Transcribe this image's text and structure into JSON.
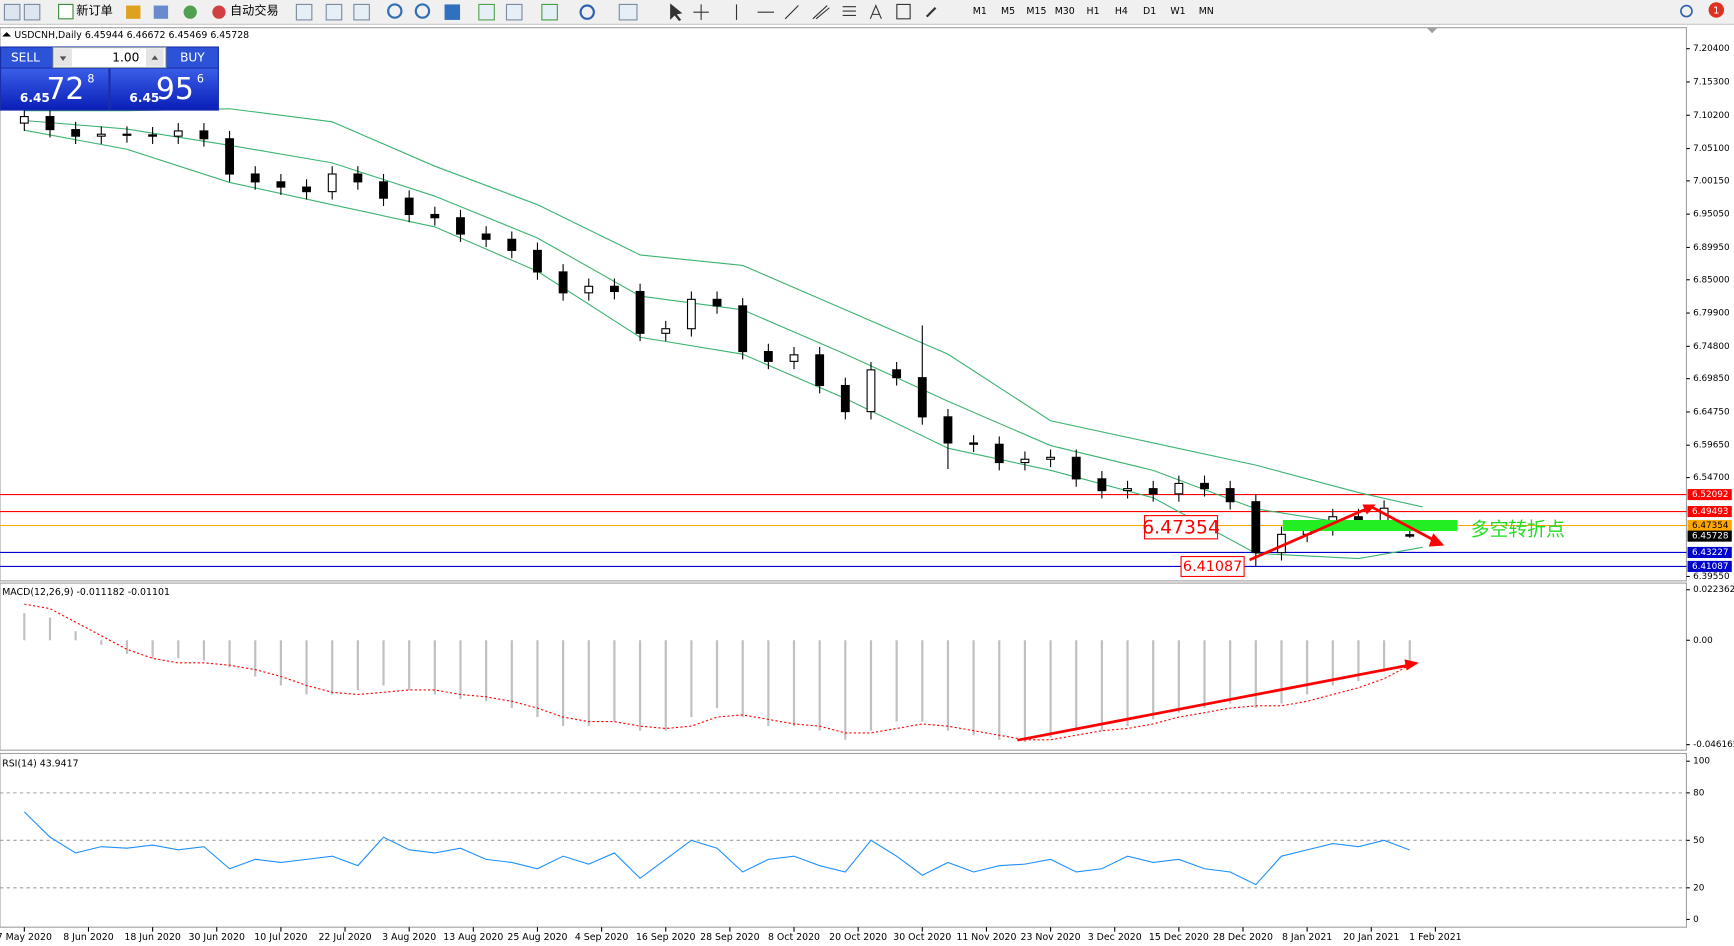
{
  "toolbar": {
    "new_order": "新订单",
    "auto_trading": "自动交易",
    "timeframes": [
      "M1",
      "M5",
      "M15",
      "M30",
      "H1",
      "H4",
      "D1",
      "W1",
      "MN"
    ],
    "alerts": "1"
  },
  "trade_panel": {
    "sell": "SELL",
    "lot": "1.00",
    "buy": "BUY",
    "bid": {
      "big": "6.45",
      "pips": "72",
      "frac": "8"
    },
    "ask": {
      "big": "6.45",
      "pips": "95",
      "frac": "6"
    }
  },
  "chart_data": [
    {
      "type": "candlestick",
      "symbol": "USDCNH,Daily",
      "xlim": [
        0,
        220
      ],
      "ylim": [
        6.3955,
        7.204
      ],
      "yticks": [
        {
          "value": 7.204,
          "label": "7.20400"
        },
        {
          "value": 7.153,
          "label": "7.15300"
        },
        {
          "value": 7.102,
          "label": "7.10200"
        },
        {
          "value": 7.051,
          "label": "7.05100"
        },
        {
          "value": 7.0015,
          "label": "7.00150"
        },
        {
          "value": 6.9505,
          "label": "6.95050"
        },
        {
          "value": 6.8995,
          "label": "6.89950"
        },
        {
          "value": 6.85,
          "label": "6.85000"
        },
        {
          "value": 6.799,
          "label": "6.79900"
        },
        {
          "value": 6.748,
          "label": "6.74800"
        },
        {
          "value": 6.6985,
          "label": "6.69850"
        },
        {
          "value": 6.6475,
          "label": "6.64750"
        },
        {
          "value": 6.5965,
          "label": "6.59650"
        },
        {
          "value": 6.547,
          "label": "6.54700"
        },
        {
          "value": 6.3955,
          "label": "6.39550"
        }
      ],
      "grid": false,
      "bull_color": "#ffffff",
      "bear_color": "#000000",
      "x": [
        0,
        4,
        8,
        12,
        16,
        20,
        24,
        28,
        32,
        36,
        40,
        44,
        48,
        52,
        56,
        60,
        64,
        68,
        72,
        76,
        80,
        84,
        88,
        92,
        96,
        100,
        104,
        108,
        112,
        116,
        120,
        124,
        128,
        132,
        136,
        140,
        144,
        148,
        152,
        156,
        160,
        164,
        168,
        172,
        176,
        180,
        184,
        188,
        192,
        196,
        200,
        204,
        208,
        212,
        216
      ],
      "open": [
        7.09,
        7.1,
        7.08,
        7.07,
        7.073,
        7.072,
        7.07,
        7.078,
        7.066,
        7.012,
        7.0,
        6.992,
        6.985,
        7.012,
        7.0,
        6.975,
        6.95,
        6.945,
        6.92,
        6.912,
        6.895,
        6.862,
        6.83,
        6.84,
        6.832,
        6.768,
        6.775,
        6.82,
        6.81,
        6.74,
        6.725,
        6.735,
        6.688,
        6.648,
        6.712,
        6.7,
        6.64,
        6.6,
        6.598,
        6.57,
        6.575,
        6.578,
        6.545,
        6.527,
        6.53,
        6.522,
        6.538,
        6.53,
        6.51,
        6.432,
        6.46,
        6.47,
        6.487,
        6.478,
        6.45944
      ],
      "high": [
        7.112,
        7.112,
        7.092,
        7.085,
        7.085,
        7.084,
        7.09,
        7.09,
        7.078,
        7.024,
        7.012,
        7.004,
        7.024,
        7.024,
        7.012,
        6.987,
        6.962,
        6.957,
        6.932,
        6.924,
        6.907,
        6.874,
        6.852,
        6.852,
        6.844,
        6.787,
        6.832,
        6.832,
        6.822,
        6.752,
        6.747,
        6.747,
        6.7,
        6.724,
        6.724,
        6.78,
        6.652,
        6.612,
        6.61,
        6.587,
        6.59,
        6.59,
        6.557,
        6.542,
        6.542,
        6.55,
        6.55,
        6.542,
        6.522,
        6.472,
        6.482,
        6.499,
        6.499,
        6.512,
        6.46672
      ],
      "low": [
        7.078,
        7.068,
        7.058,
        7.058,
        7.06,
        7.058,
        7.058,
        7.054,
        7.0,
        6.988,
        6.98,
        6.973,
        6.973,
        6.988,
        6.963,
        6.938,
        6.933,
        6.908,
        6.9,
        6.883,
        6.85,
        6.818,
        6.818,
        6.82,
        6.756,
        6.756,
        6.763,
        6.798,
        6.728,
        6.713,
        6.713,
        6.676,
        6.636,
        6.636,
        6.688,
        6.628,
        6.56,
        6.586,
        6.558,
        6.558,
        6.563,
        6.533,
        6.515,
        6.515,
        6.51,
        6.51,
        6.518,
        6.498,
        6.41087,
        6.42,
        6.448,
        6.458,
        6.466,
        6.466,
        6.45469
      ],
      "close": [
        7.1,
        7.08,
        7.07,
        7.073,
        7.072,
        7.07,
        7.078,
        7.066,
        7.012,
        7.0,
        6.992,
        6.985,
        7.012,
        7.0,
        6.975,
        6.95,
        6.945,
        6.92,
        6.912,
        6.895,
        6.862,
        6.83,
        6.84,
        6.832,
        6.768,
        6.775,
        6.82,
        6.81,
        6.74,
        6.725,
        6.735,
        6.688,
        6.648,
        6.712,
        6.7,
        6.64,
        6.6,
        6.598,
        6.57,
        6.575,
        6.578,
        6.545,
        6.527,
        6.53,
        6.522,
        6.538,
        6.53,
        6.51,
        6.432,
        6.46,
        6.47,
        6.487,
        6.478,
        6.5,
        6.45728
      ],
      "bands": {
        "color": "#3cb371",
        "x": [
          0,
          16,
          32,
          48,
          64,
          80,
          96,
          112,
          128,
          144,
          160,
          176,
          192,
          208,
          218
        ],
        "upper": [
          7.109,
          7.109,
          7.112,
          7.092,
          7.024,
          6.965,
          6.888,
          6.872,
          6.804,
          6.736,
          6.634,
          6.6,
          6.566,
          6.524,
          6.502
        ],
        "middle": [
          7.094,
          7.081,
          7.056,
          7.029,
          6.978,
          6.914,
          6.825,
          6.804,
          6.736,
          6.664,
          6.596,
          6.558,
          6.499,
          6.474,
          6.471
        ],
        "lower": [
          7.079,
          7.05,
          6.999,
          6.965,
          6.931,
          6.863,
          6.762,
          6.736,
          6.668,
          6.592,
          6.558,
          6.516,
          6.431,
          6.423,
          6.44
        ]
      },
      "levels": [
        {
          "value": 6.52092,
          "color": "#ff0000"
        },
        {
          "value": 6.49493,
          "color": "#ff0000"
        },
        {
          "value": 6.47354,
          "color": "#ffa500"
        },
        {
          "value": 6.43227,
          "color": "#0000cd"
        },
        {
          "value": 6.41087,
          "color": "#0000cd"
        }
      ],
      "annotations": [
        {
          "text": "6.47354",
          "color": "#ff0000"
        },
        {
          "text": "6.41087",
          "color": "#ff0000"
        },
        {
          "text": "多空转折点",
          "color": "#22dd22"
        }
      ]
    },
    {
      "type": "macd",
      "name": "MACD(12,26,9)",
      "xlim": [
        0,
        220
      ],
      "ylim": [
        -0.046165,
        0.022362
      ],
      "yticks": [
        0.022362,
        {
          "value": 0,
          "label": "0.00"
        },
        -0.046165
      ],
      "x": [
        0,
        4,
        8,
        12,
        16,
        20,
        24,
        28,
        32,
        36,
        40,
        44,
        48,
        52,
        56,
        60,
        64,
        68,
        72,
        76,
        80,
        84,
        88,
        92,
        96,
        100,
        104,
        108,
        112,
        116,
        120,
        124,
        128,
        132,
        136,
        140,
        144,
        148,
        152,
        156,
        160,
        164,
        168,
        172,
        176,
        180,
        184,
        188,
        192,
        196,
        200,
        204,
        208,
        212,
        216
      ],
      "histogram_color": "#c0c0c0",
      "signal_color": "#ff0000",
      "histogram": [
        0.012,
        0.01,
        0.004,
        -0.002,
        -0.006,
        -0.008,
        -0.008,
        -0.009,
        -0.012,
        -0.016,
        -0.02,
        -0.024,
        -0.024,
        -0.022,
        -0.02,
        -0.022,
        -0.024,
        -0.026,
        -0.027,
        -0.03,
        -0.034,
        -0.038,
        -0.038,
        -0.036,
        -0.04,
        -0.04,
        -0.034,
        -0.03,
        -0.034,
        -0.038,
        -0.038,
        -0.04,
        -0.044,
        -0.04,
        -0.036,
        -0.036,
        -0.04,
        -0.042,
        -0.044,
        -0.045,
        -0.043,
        -0.04,
        -0.04,
        -0.038,
        -0.035,
        -0.032,
        -0.03,
        -0.028,
        -0.03,
        -0.028,
        -0.024,
        -0.02,
        -0.018,
        -0.014,
        -0.011182
      ],
      "signal": [
        0.016,
        0.014,
        0.008,
        0.002,
        -0.004,
        -0.008,
        -0.01,
        -0.01,
        -0.011,
        -0.013,
        -0.016,
        -0.02,
        -0.023,
        -0.024,
        -0.023,
        -0.022,
        -0.022,
        -0.024,
        -0.025,
        -0.027,
        -0.03,
        -0.034,
        -0.036,
        -0.036,
        -0.038,
        -0.039,
        -0.038,
        -0.034,
        -0.033,
        -0.035,
        -0.037,
        -0.038,
        -0.041,
        -0.041,
        -0.039,
        -0.037,
        -0.038,
        -0.04,
        -0.042,
        -0.044,
        -0.044,
        -0.042,
        -0.04,
        -0.039,
        -0.037,
        -0.034,
        -0.032,
        -0.03,
        -0.029,
        -0.029,
        -0.027,
        -0.024,
        -0.021,
        -0.017,
        -0.01101
      ]
    },
    {
      "type": "line",
      "name": "RSI(14)",
      "xlim": [
        0,
        220
      ],
      "ylim": [
        0,
        100
      ],
      "yticks": [
        100,
        80,
        50,
        20,
        0
      ],
      "levels": [
        80,
        50,
        20
      ],
      "color": "#1e90ff",
      "x": [
        0,
        4,
        8,
        12,
        16,
        20,
        24,
        28,
        32,
        36,
        40,
        44,
        48,
        52,
        56,
        60,
        64,
        68,
        72,
        76,
        80,
        84,
        88,
        92,
        96,
        100,
        104,
        108,
        112,
        116,
        120,
        124,
        128,
        132,
        136,
        140,
        144,
        148,
        152,
        156,
        160,
        164,
        168,
        172,
        176,
        180,
        184,
        188,
        192,
        196,
        200,
        204,
        208,
        212,
        216
      ],
      "values": [
        68,
        52,
        42,
        46,
        45,
        47,
        44,
        46,
        32,
        38,
        36,
        38,
        40,
        34,
        52,
        44,
        42,
        45,
        38,
        36,
        32,
        40,
        35,
        42,
        26,
        38,
        50,
        45,
        30,
        38,
        40,
        34,
        30,
        50,
        40,
        28,
        36,
        30,
        34,
        35,
        38,
        30,
        32,
        40,
        36,
        38,
        32,
        30,
        22,
        40,
        44,
        48,
        46,
        50,
        43.9417
      ],
      "xticks": [
        {
          "value": 0,
          "label": "7 May 2020"
        },
        {
          "value": 10,
          "label": "8 Jun 2020"
        },
        {
          "value": 20,
          "label": "18 Jun 2020"
        },
        {
          "value": 30,
          "label": "30 Jun 2020"
        },
        {
          "value": 40,
          "label": "10 Jul 2020"
        },
        {
          "value": 50,
          "label": "22 Jul 2020"
        },
        {
          "value": 60,
          "label": "3 Aug 2020"
        },
        {
          "value": 70,
          "label": "13 Aug 2020"
        },
        {
          "value": 80,
          "label": "25 Aug 2020"
        },
        {
          "value": 90,
          "label": "4 Sep 2020"
        },
        {
          "value": 100,
          "label": "16 Sep 2020"
        },
        {
          "value": 110,
          "label": "28 Sep 2020"
        },
        {
          "value": 120,
          "label": "8 Oct 2020"
        },
        {
          "value": 130,
          "label": "20 Oct 2020"
        },
        {
          "value": 140,
          "label": "30 Oct 2020"
        },
        {
          "value": 150,
          "label": "11 Nov 2020"
        },
        {
          "value": 160,
          "label": "23 Nov 2020"
        },
        {
          "value": 170,
          "label": "3 Dec 2020"
        },
        {
          "value": 180,
          "label": "15 Dec 2020"
        },
        {
          "value": 190,
          "label": "28 Dec 2020"
        },
        {
          "value": 200,
          "label": "8 Jan 2021"
        },
        {
          "value": 210,
          "label": "20 Jan 2021"
        },
        {
          "value": 220,
          "label": "1 Feb 2021"
        }
      ]
    }
  ]
}
